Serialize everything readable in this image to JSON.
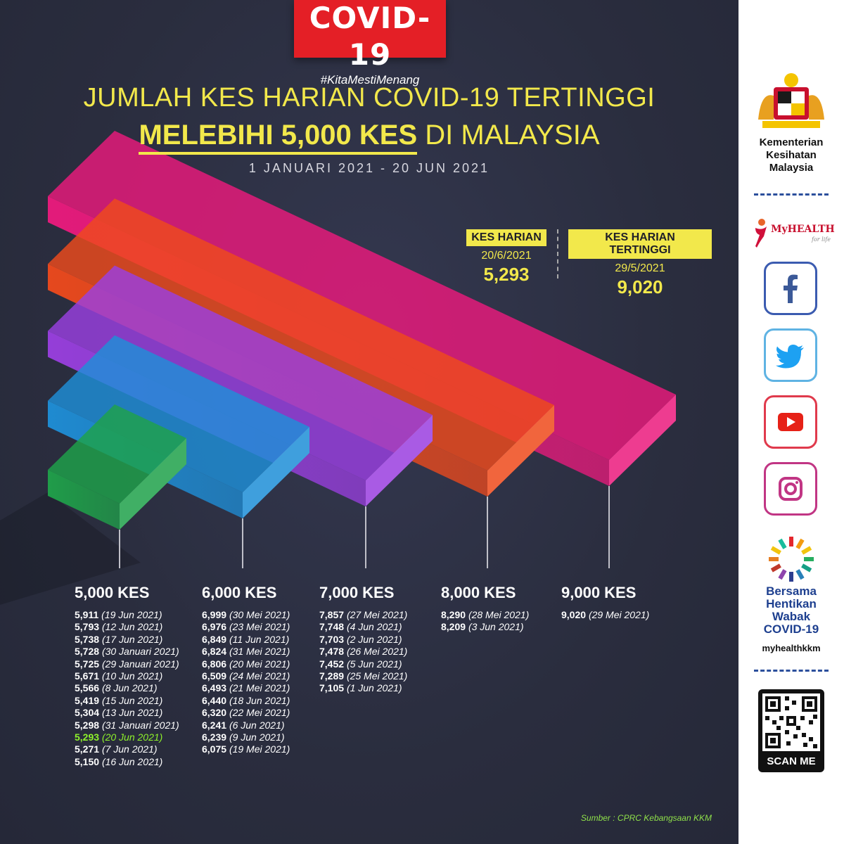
{
  "badge": {
    "title": "COVID-19",
    "hashtag": "#KitaMestiMenang"
  },
  "header": {
    "line1": "JUMLAH KES HARIAN COVID-19 TERTINGGI",
    "line2_highlight": "MELEBIHI 5,000 KES",
    "line2_rest": "DI MALAYSIA",
    "date_range": "1 JANUARI 2021 - 20 JUN 2021"
  },
  "stats": {
    "daily": {
      "label": "KES HARIAN",
      "date": "20/6/2021",
      "value": "5,293"
    },
    "highest": {
      "label": "KES HARIAN TERTINGGI",
      "date": "29/5/2021",
      "value": "9,020"
    }
  },
  "chart_data": {
    "type": "bar",
    "categories": [
      "5,000 KES",
      "6,000 KES",
      "7,000 KES",
      "8,000 KES",
      "9,000 KES"
    ],
    "values": [
      5000,
      6000,
      7000,
      8000,
      9000
    ],
    "colors": [
      "#1fa24a",
      "#1e8fd8",
      "#9a3fe0",
      "#ef4a1c",
      "#ec1a7d"
    ],
    "groups": [
      {
        "heading": "5,000 KES",
        "entries": [
          {
            "value": "5,911",
            "date": "(19 Jun 2021)"
          },
          {
            "value": "5,793",
            "date": "(12 Jun 2021)"
          },
          {
            "value": "5,738",
            "date": "(17 Jun 2021)"
          },
          {
            "value": "5,728",
            "date": "(30 Januari 2021)"
          },
          {
            "value": "5,725",
            "date": "(29 Januari 2021)"
          },
          {
            "value": "5,671",
            "date": "(10 Jun 2021)"
          },
          {
            "value": "5,566",
            "date": "(8 Jun 2021)"
          },
          {
            "value": "5,419",
            "date": "(15 Jun 2021)"
          },
          {
            "value": "5,304",
            "date": "(13 Jun 2021)"
          },
          {
            "value": "5,298",
            "date": "(31 Januari 2021)"
          },
          {
            "value": "5,293",
            "date": "(20 Jun 2021)",
            "highlight": true
          },
          {
            "value": "5,271",
            "date": "(7 Jun 2021)"
          },
          {
            "value": "5,150",
            "date": "(16 Jun 2021)"
          }
        ]
      },
      {
        "heading": "6,000 KES",
        "entries": [
          {
            "value": "6,999",
            "date": "(30 Mei 2021)"
          },
          {
            "value": "6,976",
            "date": "(23 Mei 2021)"
          },
          {
            "value": "6,849",
            "date": "(11 Jun 2021)"
          },
          {
            "value": "6,824",
            "date": "(31 Mei 2021)"
          },
          {
            "value": "6,806",
            "date": "(20 Mei 2021)"
          },
          {
            "value": "6,509",
            "date": "(24 Mei 2021)"
          },
          {
            "value": "6,493",
            "date": "(21 Mei 2021)"
          },
          {
            "value": "6,440",
            "date": "(18 Jun 2021)"
          },
          {
            "value": "6,320",
            "date": "(22 Mei 2021)"
          },
          {
            "value": "6,241",
            "date": "(6 Jun 2021)"
          },
          {
            "value": "6,239",
            "date": "(9 Jun 2021)"
          },
          {
            "value": "6,075",
            "date": "(19 Mei 2021)"
          }
        ]
      },
      {
        "heading": "7,000 KES",
        "entries": [
          {
            "value": "7,857",
            "date": "(27 Mei 2021)"
          },
          {
            "value": "7,748",
            "date": "(4 Jun 2021)"
          },
          {
            "value": "7,703",
            "date": "(2 Jun 2021)"
          },
          {
            "value": "7,478",
            "date": "(26 Mei 2021)"
          },
          {
            "value": "7,452",
            "date": "(5 Jun 2021)"
          },
          {
            "value": "7,289",
            "date": "(25 Mei 2021)"
          },
          {
            "value": "7,105",
            "date": "(1 Jun 2021)"
          }
        ]
      },
      {
        "heading": "8,000 KES",
        "entries": [
          {
            "value": "8,290",
            "date": "(28 Mei 2021)"
          },
          {
            "value": "8,209",
            "date": "(3 Jun 2021)"
          }
        ]
      },
      {
        "heading": "9,000 KES",
        "entries": [
          {
            "value": "9,020",
            "date": "(29 Mei 2021)"
          }
        ]
      }
    ]
  },
  "source": "Sumber : CPRC Kebangsaan KKM",
  "sidebar": {
    "ministry": [
      "Kementerian",
      "Kesihatan",
      "Malaysia"
    ],
    "myhealth": "MyHEALTH",
    "myhealth_sub": "for life",
    "campaign": [
      "Bersama",
      "Hentikan",
      "Wabak",
      "COVID-19"
    ],
    "campaign_handle": "myhealthkkm",
    "qr_label": "SCAN ME"
  },
  "colors": {
    "background": "#2a2d3e",
    "accent": "#f2e84b",
    "badge": "#e41f26",
    "highlight": "#8ef22a"
  }
}
